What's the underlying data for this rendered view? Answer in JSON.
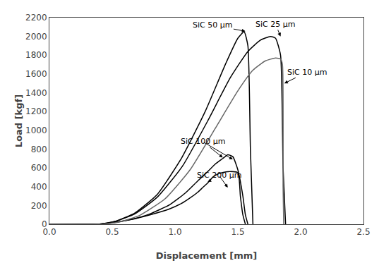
{
  "chart_data": {
    "type": "line",
    "xlabel": "Displacement [mm]",
    "ylabel": "Load [kgf]",
    "xlim": [
      0.0,
      2.5
    ],
    "ylim": [
      0,
      2200
    ],
    "xticks": [
      {
        "value": 0.0,
        "label": "0.0"
      },
      0.5,
      {
        "value": 1.0,
        "label": "1.0"
      },
      1.5,
      {
        "value": 2.0,
        "label": "2.0"
      },
      2.5
    ],
    "yticks": [
      0,
      200,
      400,
      600,
      800,
      1000,
      1200,
      1400,
      1600,
      1800,
      2000,
      2200
    ],
    "grid": false,
    "series": [
      {
        "color": "#000000",
        "x": [
          0.0,
          0.4,
          0.42,
          0.5,
          0.65,
          0.8,
          0.95,
          1.05,
          1.12,
          1.18,
          1.22,
          1.26,
          1.3,
          1.35,
          1.42,
          1.5,
          1.52,
          1.54,
          1.56
        ],
        "values": [
          0,
          0,
          3,
          15,
          50,
          100,
          160,
          220,
          280,
          340,
          390,
          440,
          500,
          540,
          560,
          550,
          300,
          100,
          0
        ]
      },
      {
        "color": "#000000",
        "x": [
          0.0,
          0.4,
          0.42,
          0.5,
          0.65,
          0.8,
          0.96,
          1.08,
          1.18,
          1.26,
          1.32,
          1.38,
          1.42,
          1.46,
          1.5,
          1.54,
          1.56,
          1.58
        ],
        "values": [
          0,
          0,
          3,
          15,
          50,
          110,
          210,
          330,
          460,
          560,
          640,
          700,
          740,
          720,
          580,
          300,
          100,
          0
        ]
      },
      {
        "color": "#000000",
        "x": [
          0.0,
          0.38,
          0.42,
          0.52,
          0.68,
          0.86,
          1.05,
          1.24,
          1.4,
          1.5,
          1.55,
          1.58,
          1.6,
          1.62
        ],
        "values": [
          0,
          0,
          5,
          30,
          120,
          320,
          700,
          1200,
          1700,
          1980,
          2050,
          1900,
          800,
          0
        ]
      },
      {
        "color": "#000000",
        "x": [
          0.0,
          0.38,
          0.42,
          0.52,
          0.68,
          0.86,
          1.06,
          1.26,
          1.44,
          1.58,
          1.68,
          1.76,
          1.8,
          1.84,
          1.86,
          1.88
        ],
        "values": [
          0,
          0,
          5,
          28,
          110,
          290,
          620,
          1100,
          1560,
          1840,
          1960,
          2000,
          1980,
          1800,
          600,
          0
        ]
      },
      {
        "color": "#666666",
        "x": [
          0.0,
          0.42,
          0.46,
          0.56,
          0.72,
          0.92,
          1.12,
          1.32,
          1.5,
          1.62,
          1.72,
          1.8,
          1.84,
          1.855,
          1.86,
          1.865
        ],
        "values": [
          0,
          0,
          5,
          25,
          95,
          270,
          580,
          1020,
          1420,
          1640,
          1740,
          1770,
          1760,
          1700,
          400,
          0
        ]
      }
    ],
    "annotations": [
      {
        "text": "SiC 50 μm",
        "text_at": [
          1.3,
          2120
        ],
        "arrow_to": [
          [
            1.56,
            2055
          ]
        ]
      },
      {
        "text": "SiC 25 μm",
        "text_at": [
          1.8,
          2130
        ],
        "arrow_to": [
          [
            1.84,
            2000
          ]
        ]
      },
      {
        "text": "SiC 10 μm",
        "text_at": [
          2.05,
          1620
        ],
        "arrow_to": [
          [
            1.87,
            1500
          ]
        ]
      },
      {
        "text": "SiC 100 μm",
        "text_at": [
          1.22,
          880
        ],
        "arrow_to": [
          [
            1.38,
            710
          ],
          [
            1.46,
            690
          ]
        ]
      },
      {
        "text": "SiC 200 μm",
        "text_at": [
          1.35,
          520
        ],
        "arrow_to": [
          [
            1.26,
            450
          ],
          [
            1.42,
            390
          ]
        ]
      }
    ]
  }
}
